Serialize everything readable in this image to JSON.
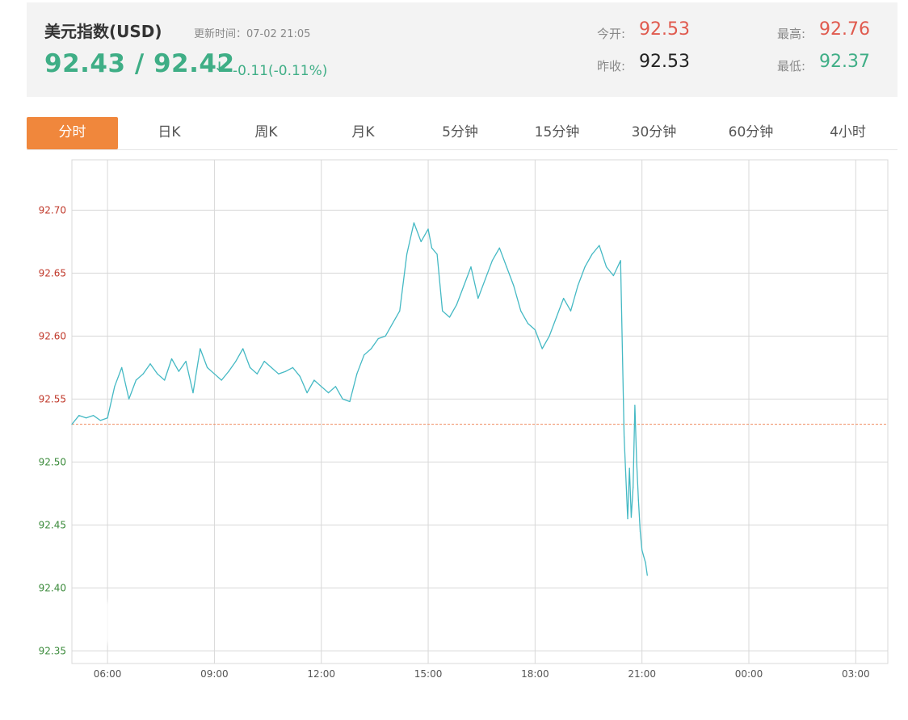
{
  "header": {
    "title": "美元指数(USD)",
    "updated_label": "更新时间：",
    "updated_time": "07-02 21:05",
    "price": "92.43 / 92.42",
    "arrow": "↓",
    "change": "-0.11(-0.11%)",
    "open_label": "今开:",
    "open_value": "92.53",
    "prev_close_label": "昨收:",
    "prev_close_value": "92.53",
    "high_label": "最高:",
    "high_value": "92.76",
    "low_label": "最低:",
    "low_value": "92.37"
  },
  "colors": {
    "up": "#e05a4e",
    "down": "#3fae86",
    "neutral": "#222222",
    "line": "#45b9c4",
    "baseline": "#f08a5d",
    "tab_active": "#f0873c",
    "grid": "#d8d8d8"
  },
  "tabs": [
    {
      "label": "分时",
      "active": true
    },
    {
      "label": "日K",
      "active": false
    },
    {
      "label": "周K",
      "active": false
    },
    {
      "label": "月K",
      "active": false
    },
    {
      "label": "5分钟",
      "active": false
    },
    {
      "label": "15分钟",
      "active": false
    },
    {
      "label": "30分钟",
      "active": false
    },
    {
      "label": "60分钟",
      "active": false
    },
    {
      "label": "4小时",
      "active": false
    }
  ],
  "chart_data": {
    "type": "line",
    "x_ticks": [
      "06:00",
      "09:00",
      "12:00",
      "15:00",
      "18:00",
      "21:00",
      "00:00",
      "03:00"
    ],
    "x_range_hours": [
      5.0,
      27.9
    ],
    "y_ticks": [
      "92.70",
      "92.65",
      "92.60",
      "92.55",
      "92.50",
      "92.45",
      "92.40",
      "92.35"
    ],
    "ylim": [
      92.34,
      92.74
    ],
    "baseline": 92.53,
    "grid": true,
    "series": [
      {
        "x": [
          5.0,
          5.2,
          5.4,
          5.6,
          5.8,
          6.0,
          6.2,
          6.4,
          6.6,
          6.8,
          7.0,
          7.2,
          7.4,
          7.6,
          7.8,
          8.0,
          8.2,
          8.4,
          8.6,
          8.8,
          9.0,
          9.2,
          9.4,
          9.6,
          9.8,
          10.0,
          10.2,
          10.4,
          10.6,
          10.8,
          11.0,
          11.2,
          11.4,
          11.6,
          11.8,
          12.0,
          12.2,
          12.4,
          12.6,
          12.8,
          13.0,
          13.2,
          13.4,
          13.6,
          13.8,
          14.0,
          14.2,
          14.4,
          14.6,
          14.8,
          15.0,
          15.1,
          15.25,
          15.4,
          15.6,
          15.8,
          16.0,
          16.2,
          16.4,
          16.6,
          16.8,
          17.0,
          17.2,
          17.4,
          17.6,
          17.8,
          18.0,
          18.2,
          18.4,
          18.6,
          18.8,
          19.0,
          19.2,
          19.4,
          19.6,
          19.8,
          20.0,
          20.2,
          20.4,
          20.5,
          20.6,
          20.65,
          20.7,
          20.75,
          20.8,
          20.85,
          20.9,
          20.95,
          21.0,
          21.05,
          21.1,
          21.15
        ],
        "values": [
          92.53,
          92.537,
          92.535,
          92.537,
          92.533,
          92.535,
          92.56,
          92.575,
          92.55,
          92.565,
          92.57,
          92.578,
          92.57,
          92.565,
          92.582,
          92.572,
          92.58,
          92.555,
          92.59,
          92.575,
          92.57,
          92.565,
          92.572,
          92.58,
          92.59,
          92.575,
          92.57,
          92.58,
          92.575,
          92.57,
          92.572,
          92.575,
          92.568,
          92.555,
          92.565,
          92.56,
          92.555,
          92.56,
          92.55,
          92.548,
          92.57,
          92.585,
          92.59,
          92.598,
          92.6,
          92.61,
          92.62,
          92.665,
          92.69,
          92.675,
          92.685,
          92.67,
          92.665,
          92.62,
          92.615,
          92.625,
          92.64,
          92.655,
          92.63,
          92.645,
          92.66,
          92.67,
          92.655,
          92.64,
          92.62,
          92.61,
          92.605,
          92.59,
          92.6,
          92.615,
          92.63,
          92.62,
          92.64,
          92.655,
          92.665,
          92.672,
          92.655,
          92.648,
          92.66,
          92.52,
          92.455,
          92.495,
          92.456,
          92.48,
          92.545,
          92.5,
          92.47,
          92.445,
          92.43,
          92.425,
          92.42,
          92.41
        ],
        "color": "#45b9c4"
      }
    ]
  }
}
